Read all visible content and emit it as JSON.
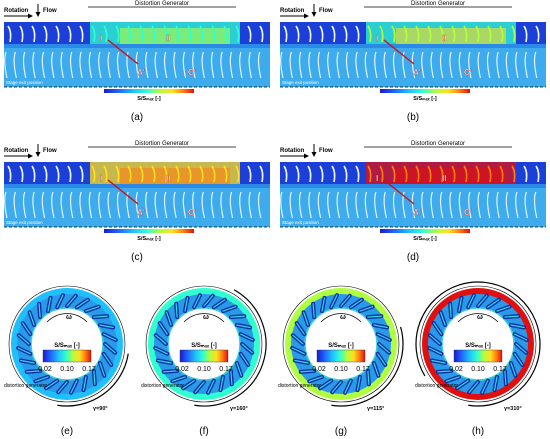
{
  "panels": [
    {
      "caption": "(a)",
      "rotation": "Rotation",
      "flow": "Flow",
      "generator": "Distortion Generator",
      "marker_I": "I",
      "marker_II": "II",
      "marker_A": "A'",
      "marker_C": "C'",
      "stage_exit": "Stage exit position",
      "cbar_label": "S/Sₘₐₓ [-]",
      "intensity": 0.25
    },
    {
      "caption": "(b)",
      "rotation": "Rotation",
      "flow": "Flow",
      "generator": "Distortion Generator",
      "marker_I": "I",
      "marker_II": "II",
      "marker_A": "A'",
      "marker_C": "C'",
      "stage_exit": "Stage exit position",
      "cbar_label": "S/Sₘₐₓ [-]",
      "intensity": 0.35
    },
    {
      "caption": "(c)",
      "rotation": "Rotation",
      "flow": "Flow",
      "generator": "Distortion Generator",
      "marker_I": "I",
      "marker_II": "II",
      "marker_A": "A'",
      "marker_C": "C'",
      "stage_exit": "Stage exit position",
      "cbar_label": "S/Sₘₐₓ [-]",
      "intensity": 0.6
    },
    {
      "caption": "(d)",
      "rotation": "Rotation",
      "flow": "Flow",
      "generator": "Distortion Generator",
      "marker_I": "I",
      "marker_II": "II",
      "marker_A": "A'",
      "marker_C": "C'",
      "stage_exit": "Stage exit position",
      "cbar_label": "S/Sₘₐₓ [-]",
      "intensity": 0.9
    }
  ],
  "rings": [
    {
      "caption": "(e)",
      "omega": "ω",
      "cbar_label": "S/Sₘₐₓ [-]",
      "ticks": [
        "0.02",
        "0.10",
        "0.17"
      ],
      "generator": "distortion generator",
      "gamma": "γ=90°",
      "gamma_deg": 90,
      "intensity": 0.2
    },
    {
      "caption": "(f)",
      "omega": "ω",
      "cbar_label": "S/Sₘₐₓ [-]",
      "ticks": [
        "0.02",
        "0.10",
        "0.17"
      ],
      "generator": "distortion generator",
      "gamma": "γ=160°",
      "gamma_deg": 160,
      "intensity": 0.35
    },
    {
      "caption": "(g)",
      "omega": "ω",
      "cbar_label": "S/Sₘₐₓ [-]",
      "ticks": [
        "0.02",
        "0.10",
        "0.17"
      ],
      "generator": "distortion generator",
      "gamma": "γ=115°",
      "gamma_deg": 115,
      "intensity": 0.55
    },
    {
      "caption": "(h)",
      "omega": "ω",
      "cbar_label": "S/Sₘₐₓ [-]",
      "ticks": [
        "0.02",
        "0.10",
        "0.17"
      ],
      "generator": "distortion generator",
      "gamma": "γ=310°",
      "gamma_deg": 310,
      "intensity": 1.0
    }
  ],
  "colormap": [
    "#1a1acc",
    "#2060ff",
    "#20c0ff",
    "#30ffd0",
    "#b0ff40",
    "#ffe020",
    "#ff8010",
    "#e01010"
  ]
}
